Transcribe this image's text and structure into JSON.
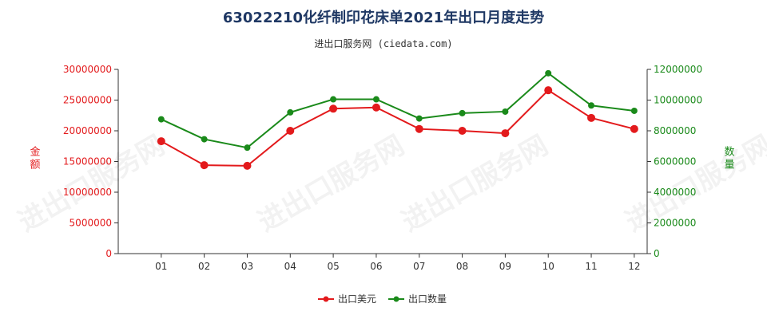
{
  "title": "63022210化纤制印花床单2021年出口月度走势",
  "subtitle": "进出口服务网 (ciedata.com)",
  "watermark": "进出口服务网",
  "colors": {
    "amount": "#e31a1c",
    "quantity": "#1a8a1a",
    "axis": "#333333",
    "title": "#1f3864"
  },
  "chart_data": {
    "type": "line",
    "categories": [
      "01",
      "02",
      "03",
      "04",
      "05",
      "06",
      "07",
      "08",
      "09",
      "10",
      "11",
      "12"
    ],
    "series": [
      {
        "name": "出口美元",
        "axis": "left",
        "values": [
          18300000,
          14400000,
          14300000,
          20000000,
          23600000,
          23800000,
          20300000,
          20000000,
          19600000,
          26600000,
          22100000,
          20300000
        ]
      },
      {
        "name": "出口数量",
        "axis": "right",
        "values": [
          8750000,
          7450000,
          6900000,
          9200000,
          10050000,
          10050000,
          8800000,
          9150000,
          9250000,
          11750000,
          9650000,
          9300000
        ]
      }
    ],
    "yleft": {
      "label": "金额",
      "min": 0,
      "max": 30000000,
      "ticks": [
        "0",
        "5000000",
        "10000000",
        "15000000",
        "20000000",
        "25000000",
        "30000000"
      ]
    },
    "yright": {
      "label": "数量",
      "min": 0,
      "max": 12000000,
      "ticks": [
        "0",
        "2000000",
        "4000000",
        "6000000",
        "8000000",
        "10000000",
        "12000000"
      ]
    },
    "legend_position": "bottom",
    "grid": false
  }
}
